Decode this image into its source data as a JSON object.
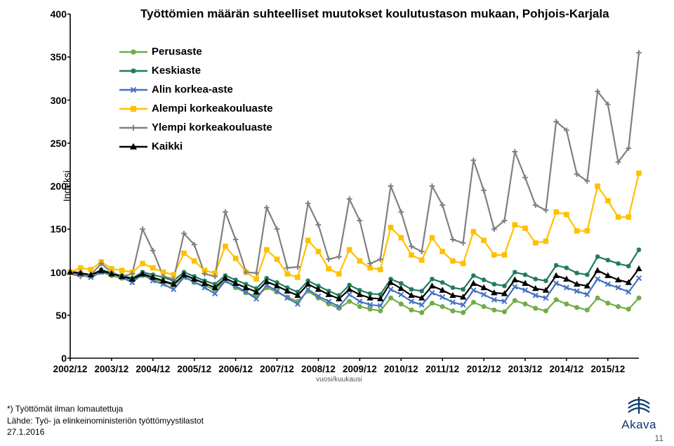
{
  "chart": {
    "type": "line",
    "title": "Työttömien määrän suhteelliset muutokset koulutustason mukaan, Pohjois-Karjala",
    "y_axis_label": "Indeksi",
    "title_fontsize": 17,
    "label_fontsize": 13,
    "background_color": "#ffffff",
    "axis_color": "#000000",
    "line_width": 2.2,
    "ylim": [
      0,
      400
    ],
    "ytick_step": 50,
    "yticks": [
      "0",
      "50",
      "100",
      "150",
      "200",
      "250",
      "300",
      "350",
      "400"
    ],
    "x_major_labels": [
      "2002/12",
      "2003/12",
      "2004/12",
      "2005/12",
      "2006/12",
      "2007/12",
      "2008/12",
      "2009/12",
      "2010/12",
      "2011/12",
      "2012/12",
      "2013/12",
      "2014/12",
      "2015/12"
    ],
    "x_sublabel": "vuosi/kuukausi",
    "x_sublabel_index": 7,
    "legend_position": "top-left-inside",
    "n_points": 56,
    "series": [
      {
        "key": "perusaste",
        "label": "Perusaste",
        "color": "#70ad47",
        "marker": "circle",
        "values": [
          100,
          97,
          95,
          100,
          96,
          93,
          90,
          96,
          92,
          88,
          85,
          95,
          88,
          84,
          80,
          90,
          82,
          76,
          72,
          82,
          77,
          71,
          66,
          78,
          70,
          63,
          58,
          66,
          60,
          57,
          55,
          70,
          63,
          56,
          53,
          64,
          60,
          55,
          53,
          65,
          60,
          56,
          54,
          67,
          63,
          58,
          55,
          68,
          63,
          59,
          56,
          70,
          64,
          60,
          57,
          70
        ]
      },
      {
        "key": "keskiaste",
        "label": "Keskiaste",
        "color": "#1f7a5a",
        "marker": "asterisk",
        "values": [
          101,
          99,
          96,
          103,
          99,
          96,
          93,
          100,
          97,
          94,
          90,
          100,
          95,
          90,
          86,
          96,
          91,
          86,
          81,
          93,
          88,
          82,
          77,
          90,
          84,
          78,
          73,
          85,
          79,
          75,
          74,
          92,
          87,
          80,
          78,
          92,
          88,
          82,
          80,
          96,
          91,
          86,
          84,
          100,
          97,
          92,
          90,
          108,
          105,
          99,
          97,
          118,
          114,
          110,
          107,
          126
        ]
      },
      {
        "key": "alin_korkea",
        "label": "Alin korkea-aste",
        "color": "#4472c4",
        "marker": "x",
        "values": [
          100,
          97,
          94,
          100,
          99,
          94,
          88,
          98,
          90,
          86,
          80,
          94,
          89,
          82,
          75,
          90,
          84,
          77,
          69,
          85,
          78,
          70,
          63,
          80,
          72,
          66,
          60,
          74,
          66,
          62,
          61,
          80,
          74,
          66,
          62,
          76,
          71,
          65,
          62,
          79,
          74,
          68,
          66,
          83,
          79,
          73,
          70,
          87,
          82,
          78,
          74,
          92,
          86,
          82,
          77,
          93
        ]
      },
      {
        "key": "alempi_kk",
        "label": "Alempi korkeakouluaste",
        "color": "#ffc000",
        "marker": "square",
        "values": [
          100,
          105,
          103,
          112,
          104,
          102,
          100,
          110,
          105,
          100,
          97,
          122,
          113,
          102,
          99,
          130,
          116,
          100,
          92,
          126,
          115,
          98,
          94,
          137,
          124,
          104,
          98,
          126,
          113,
          105,
          103,
          152,
          140,
          120,
          114,
          140,
          124,
          113,
          110,
          147,
          137,
          120,
          120,
          155,
          151,
          134,
          136,
          170,
          167,
          148,
          148,
          200,
          183,
          164,
          164,
          215
        ]
      },
      {
        "key": "ylempi_kk",
        "label": "Ylempi korkeakouluaste",
        "color": "#808080",
        "marker": "plus",
        "values": [
          98,
          95,
          97,
          110,
          100,
          95,
          98,
          150,
          125,
          95,
          92,
          145,
          132,
          98,
          95,
          170,
          138,
          100,
          99,
          175,
          150,
          105,
          106,
          180,
          155,
          115,
          118,
          185,
          160,
          110,
          115,
          200,
          170,
          130,
          124,
          200,
          178,
          138,
          134,
          230,
          195,
          150,
          160,
          240,
          210,
          178,
          172,
          275,
          265,
          214,
          206,
          310,
          295,
          228,
          244,
          355
        ]
      },
      {
        "key": "kaikki",
        "label": "Kaikki",
        "color": "#000000",
        "marker": "triangle",
        "values": [
          100,
          99,
          97,
          102,
          98,
          95,
          92,
          98,
          94,
          90,
          86,
          97,
          92,
          87,
          82,
          93,
          87,
          82,
          77,
          89,
          84,
          78,
          73,
          86,
          80,
          74,
          69,
          80,
          74,
          70,
          69,
          88,
          81,
          73,
          70,
          84,
          79,
          73,
          71,
          87,
          82,
          76,
          75,
          91,
          87,
          81,
          79,
          96,
          92,
          86,
          84,
          102,
          96,
          91,
          88,
          104
        ]
      }
    ]
  },
  "logo": {
    "name": "Akava",
    "color": "#0b3a6f"
  },
  "footnote": {
    "line1": "*) Työttömät ilman lomautettuja",
    "line2": "Lähde: Työ- ja elinkeinoministeriön työttömyystilastot",
    "line3": "27.1.2016"
  },
  "page_number": "11"
}
